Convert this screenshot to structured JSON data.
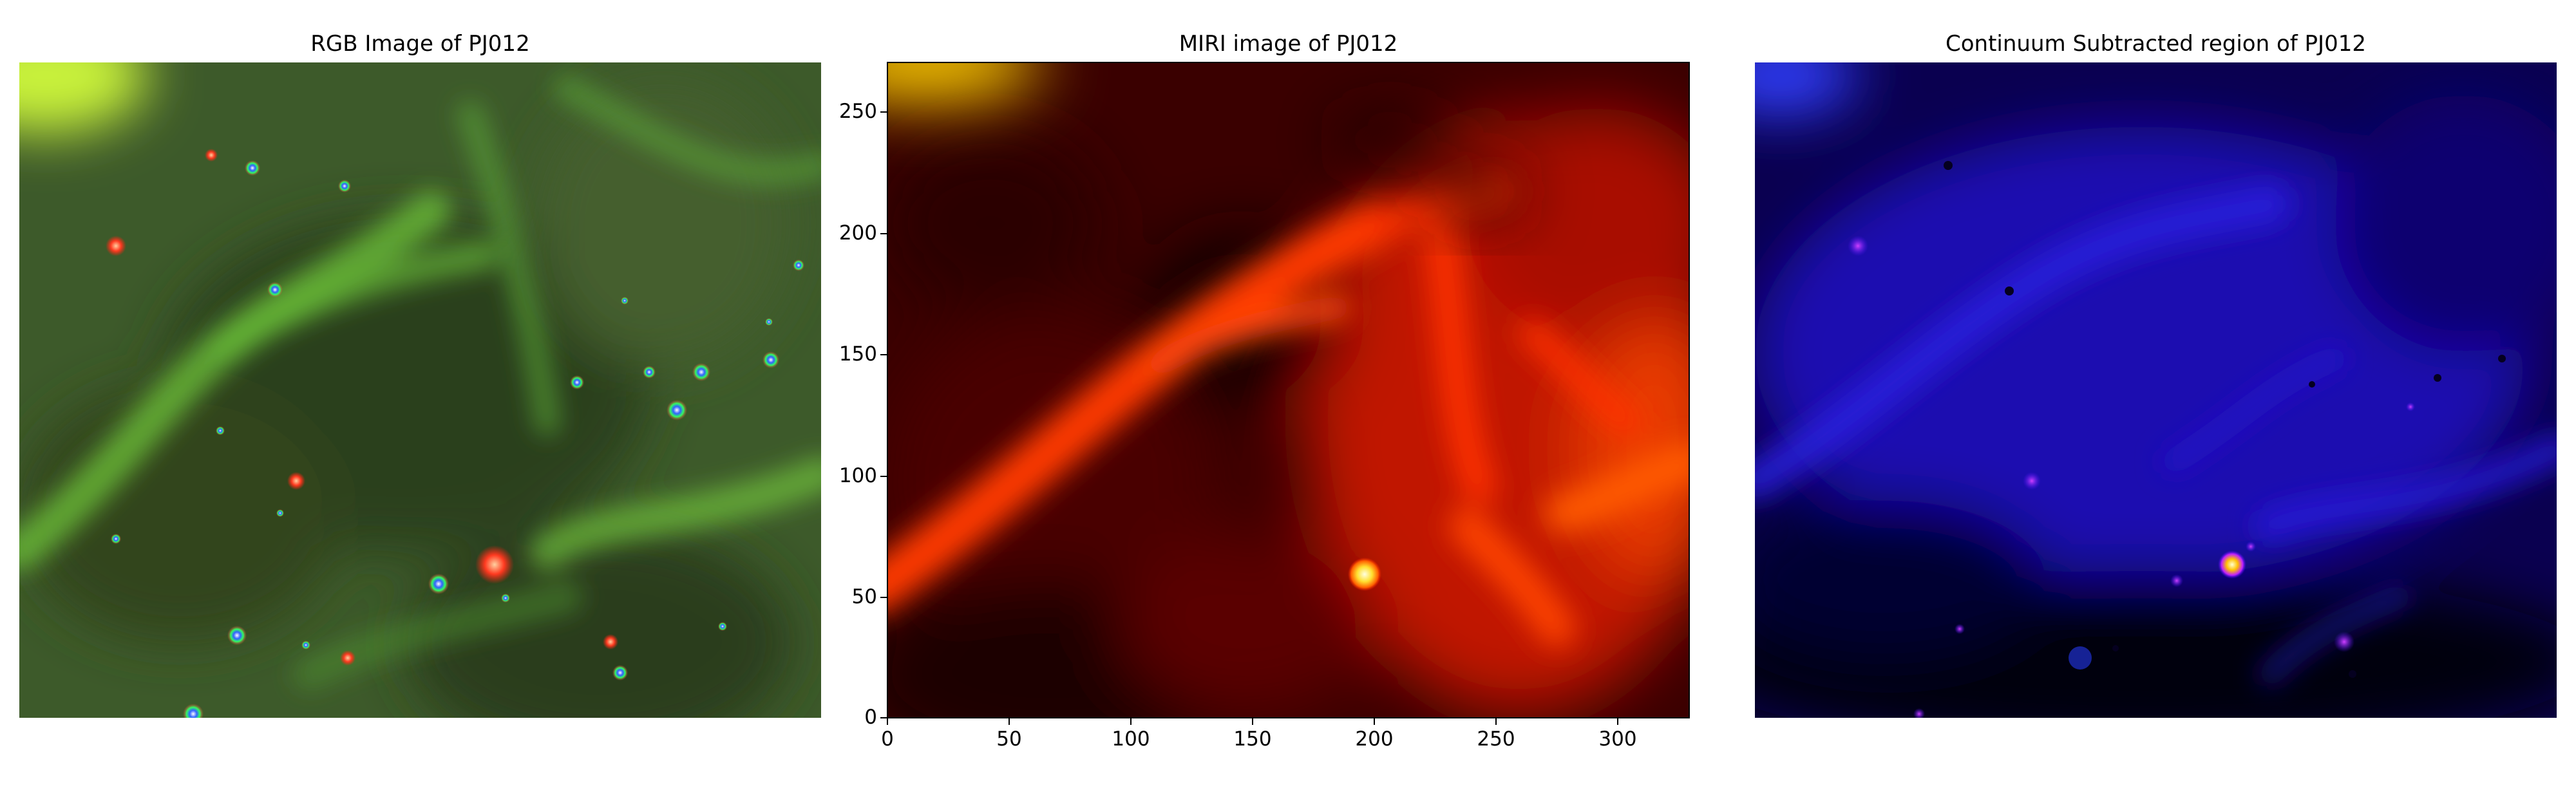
{
  "panels": [
    {
      "title": "RGB Image of PJ012"
    },
    {
      "title": "MIRI image of PJ012"
    },
    {
      "title": "Continuum Subtracted region of PJ012"
    }
  ],
  "miri_axes": {
    "xticks": [
      "0",
      "50",
      "100",
      "150",
      "200",
      "250",
      "300"
    ],
    "yticks": [
      "0",
      "50",
      "100",
      "150",
      "200",
      "250"
    ],
    "xlim": [
      0,
      330
    ],
    "ylim": [
      0,
      270
    ]
  },
  "colors": {
    "rgb_panel_base": "#3f5f2c",
    "miri_colormap": "hot",
    "continuum_colormap": "gnuplot2"
  },
  "icons": [
    "bright-point-source"
  ]
}
